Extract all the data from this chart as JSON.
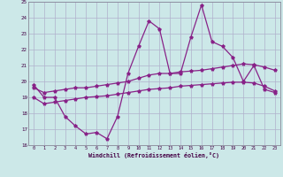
{
  "xlabel": "Windchill (Refroidissement éolien,°C)",
  "xlim": [
    -0.5,
    23.5
  ],
  "ylim": [
    16,
    25
  ],
  "yticks": [
    16,
    17,
    18,
    19,
    20,
    21,
    22,
    23,
    24,
    25
  ],
  "xticks": [
    0,
    1,
    2,
    3,
    4,
    5,
    6,
    7,
    8,
    9,
    10,
    11,
    12,
    13,
    14,
    15,
    16,
    17,
    18,
    19,
    20,
    21,
    22,
    23
  ],
  "bg_color": "#cce8e8",
  "grid_color": "#b0b0cc",
  "line_color": "#882288",
  "line1_y": [
    19.8,
    19.0,
    19.0,
    17.8,
    17.2,
    16.7,
    16.8,
    16.4,
    17.8,
    20.5,
    22.2,
    23.8,
    23.3,
    20.5,
    20.5,
    22.8,
    24.8,
    22.5,
    22.2,
    21.5,
    20.0,
    21.0,
    19.5,
    19.3
  ],
  "line2_y": [
    19.6,
    19.3,
    19.4,
    19.5,
    19.6,
    19.6,
    19.7,
    19.8,
    19.9,
    20.0,
    20.2,
    20.4,
    20.5,
    20.5,
    20.6,
    20.65,
    20.7,
    20.8,
    20.9,
    21.0,
    21.1,
    21.05,
    20.9,
    20.7
  ],
  "line3_y": [
    19.0,
    18.6,
    18.7,
    18.8,
    18.9,
    19.0,
    19.05,
    19.1,
    19.2,
    19.3,
    19.4,
    19.5,
    19.55,
    19.6,
    19.7,
    19.75,
    19.8,
    19.85,
    19.9,
    19.95,
    19.95,
    19.9,
    19.7,
    19.4
  ]
}
